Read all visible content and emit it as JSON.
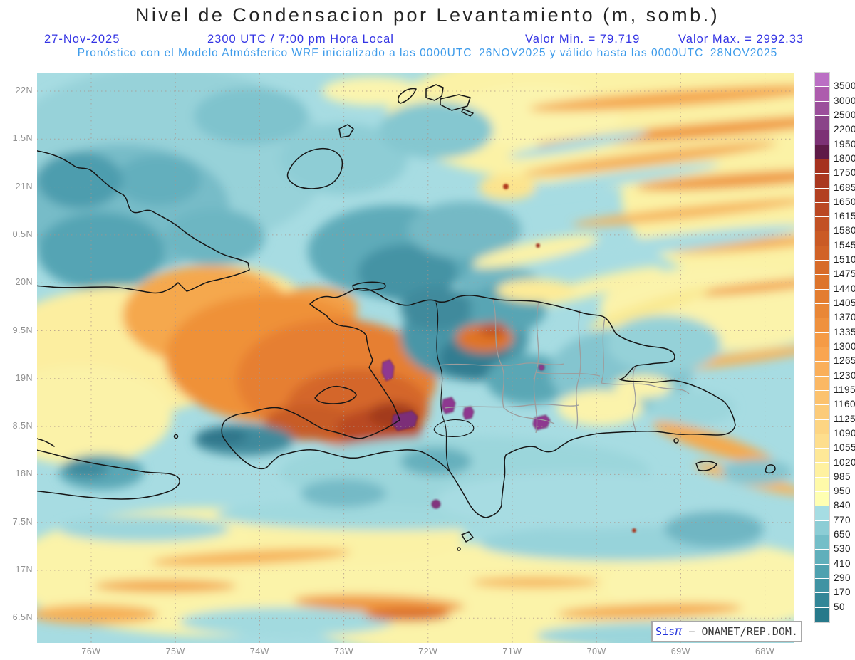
{
  "title": "Nivel de Condensacion por Levantamiento (m, somb.)",
  "header": {
    "date": "27-Nov-2025",
    "time": "2300 UTC / 7:00 pm Hora Local",
    "valor_min": "Valor Min. = 79.719",
    "valor_max": "Valor Max. = 2992.33",
    "model_line": "Pronóstico con el Modelo Atmósferico WRF inicializado a las 0000UTC_26NOV2025 y válido hasta las  0000UTC_28NOV2025"
  },
  "watermark": {
    "brand_prefix": "Sis",
    "brand_pi": "π",
    "separator": " − ",
    "org": "ONAMET/REP.DOM."
  },
  "chart_data": {
    "type": "heatmap",
    "variable": "Nivel de Condensacion por Levantamiento",
    "units": "m",
    "shading_note": "somb.",
    "date": "27-Nov-2025",
    "valid_time": "2300 UTC / 7:00 pm Hora Local",
    "model": "WRF",
    "initialized": "0000UTC_26NOV2025",
    "valid_until": "0000UTC_28NOV2025",
    "value_min": 79.719,
    "value_max": 2992.33,
    "region": "La Española (Haití / República Dominicana), este de Cuba, Jamaica, Bahamas",
    "grid": true,
    "x_ticks": [
      "76W",
      "75W",
      "74W",
      "73W",
      "72W",
      "71W",
      "70W",
      "69W",
      "68W"
    ],
    "y_ticks": [
      "22N",
      "1.5N",
      "21N",
      "0.5N",
      "20N",
      "9.5N",
      "19N",
      "8.5N",
      "18N",
      "7.5N",
      "17N",
      "6.5N"
    ],
    "colorbar": {
      "position": "right",
      "tick_labels": [
        "3500",
        "3000",
        "2500",
        "2200",
        "1950",
        "1800",
        "1750",
        "1685",
        "1650",
        "1615",
        "1580",
        "1545",
        "1510",
        "1475",
        "1440",
        "1405",
        "1370",
        "1335",
        "1300",
        "1265",
        "1230",
        "1195",
        "1160",
        "1125",
        "1090",
        "1055",
        "1020",
        "985",
        "950",
        "840",
        "770",
        "650",
        "530",
        "410",
        "290",
        "170",
        "50"
      ],
      "colors_top_to_bottom": [
        "#bb6fc4",
        "#ad5cad",
        "#9b4f9b",
        "#8a4489",
        "#7c3175",
        "#5e1a47",
        "#a5321f",
        "#aa3820",
        "#b24021",
        "#ba4823",
        "#c25124",
        "#ca5a25",
        "#d16227",
        "#d76b29",
        "#dd742c",
        "#e37d30",
        "#e98737",
        "#ef913e",
        "#f59b46",
        "#f9a550",
        "#faaf5a",
        "#fbb864",
        "#fcc26e",
        "#fccb79",
        "#fdd583",
        "#fede8d",
        "#fee897",
        "#fff1a0",
        "#fffaa9",
        "#ffffb2",
        "#a6dde3",
        "#8ccdd5",
        "#74bec8",
        "#60afbb",
        "#4fa1af",
        "#4093a3",
        "#338697",
        "#27798a"
      ]
    }
  }
}
